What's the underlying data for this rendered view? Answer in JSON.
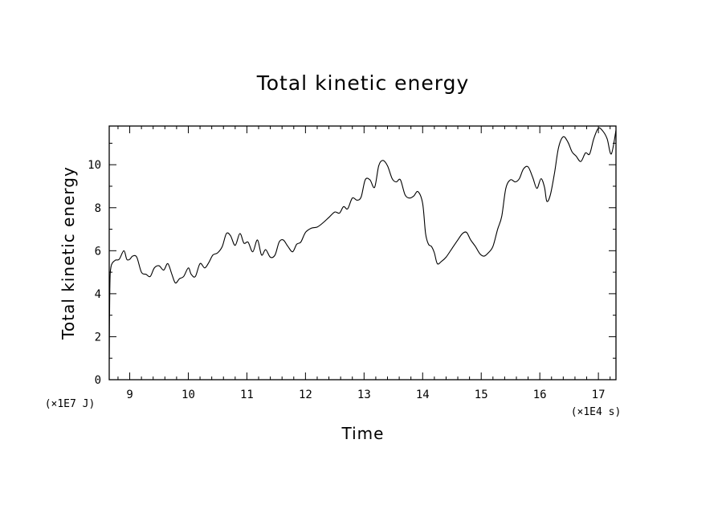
{
  "chart_data": {
    "type": "line",
    "title": "Total kinetic energy",
    "xlabel": "Time",
    "ylabel": "Total kinetic energy",
    "x_unit": "(×1E4 s)",
    "y_unit": "(×1E7 J)",
    "xlim": [
      8.65,
      17.3
    ],
    "ylim": [
      0,
      11.8
    ],
    "grid": false,
    "x_ticks": [
      9,
      10,
      11,
      12,
      13,
      14,
      15,
      16,
      17
    ],
    "y_ticks": [
      0,
      2,
      4,
      6,
      8,
      10
    ],
    "series": [
      {
        "x": [
          8.65,
          8.66,
          8.68,
          8.75,
          8.82,
          8.9,
          8.95,
          9.0,
          9.05,
          9.12,
          9.2,
          9.28,
          9.35,
          9.42,
          9.5,
          9.58,
          9.65,
          9.72,
          9.78,
          9.85,
          9.92,
          10.0,
          10.05,
          10.12,
          10.2,
          10.28,
          10.35,
          10.42,
          10.5,
          10.58,
          10.65,
          10.72,
          10.8,
          10.88,
          10.95,
          11.02,
          11.1,
          11.18,
          11.25,
          11.32,
          11.4,
          11.48,
          11.55,
          11.62,
          11.7,
          11.78,
          11.85,
          11.92,
          12.0,
          12.1,
          12.2,
          12.3,
          12.4,
          12.5,
          12.58,
          12.65,
          12.72,
          12.8,
          12.88,
          12.95,
          13.02,
          13.1,
          13.18,
          13.25,
          13.32,
          13.4,
          13.48,
          13.55,
          13.62,
          13.7,
          13.78,
          13.85,
          13.92,
          14.0,
          14.05,
          14.1,
          14.15,
          14.2,
          14.25,
          14.32,
          14.4,
          14.5,
          14.6,
          14.68,
          14.75,
          14.82,
          14.9,
          14.98,
          15.05,
          15.12,
          15.2,
          15.28,
          15.35,
          15.42,
          15.5,
          15.58,
          15.65,
          15.72,
          15.8,
          15.88,
          15.95,
          16.02,
          16.08,
          16.12,
          16.18,
          16.25,
          16.32,
          16.4,
          16.48,
          16.55,
          16.62,
          16.7,
          16.78,
          16.85,
          16.92,
          17.0,
          17.08,
          17.15,
          17.22,
          17.3
        ],
        "y": [
          0.9,
          4.2,
          5.25,
          5.55,
          5.6,
          6.0,
          5.6,
          5.6,
          5.75,
          5.7,
          5.0,
          4.9,
          4.8,
          5.2,
          5.3,
          5.1,
          5.4,
          4.9,
          4.5,
          4.7,
          4.8,
          5.2,
          4.9,
          4.8,
          5.4,
          5.2,
          5.45,
          5.8,
          5.9,
          6.2,
          6.8,
          6.7,
          6.25,
          6.8,
          6.35,
          6.4,
          5.95,
          6.5,
          5.8,
          6.05,
          5.7,
          5.8,
          6.4,
          6.5,
          6.2,
          5.95,
          6.3,
          6.4,
          6.85,
          7.05,
          7.1,
          7.3,
          7.55,
          7.8,
          7.75,
          8.05,
          7.95,
          8.45,
          8.35,
          8.5,
          9.3,
          9.3,
          8.95,
          9.95,
          10.2,
          9.95,
          9.35,
          9.2,
          9.3,
          8.6,
          8.45,
          8.55,
          8.75,
          8.2,
          6.8,
          6.3,
          6.2,
          5.9,
          5.4,
          5.5,
          5.7,
          6.1,
          6.5,
          6.8,
          6.85,
          6.5,
          6.2,
          5.85,
          5.75,
          5.9,
          6.2,
          7.0,
          7.6,
          8.9,
          9.3,
          9.2,
          9.35,
          9.8,
          9.9,
          9.4,
          8.9,
          9.35,
          8.95,
          8.3,
          8.6,
          9.6,
          10.8,
          11.3,
          11.05,
          10.6,
          10.4,
          10.15,
          10.55,
          10.5,
          11.2,
          11.7,
          11.55,
          11.2,
          10.5,
          11.6
        ]
      }
    ]
  }
}
